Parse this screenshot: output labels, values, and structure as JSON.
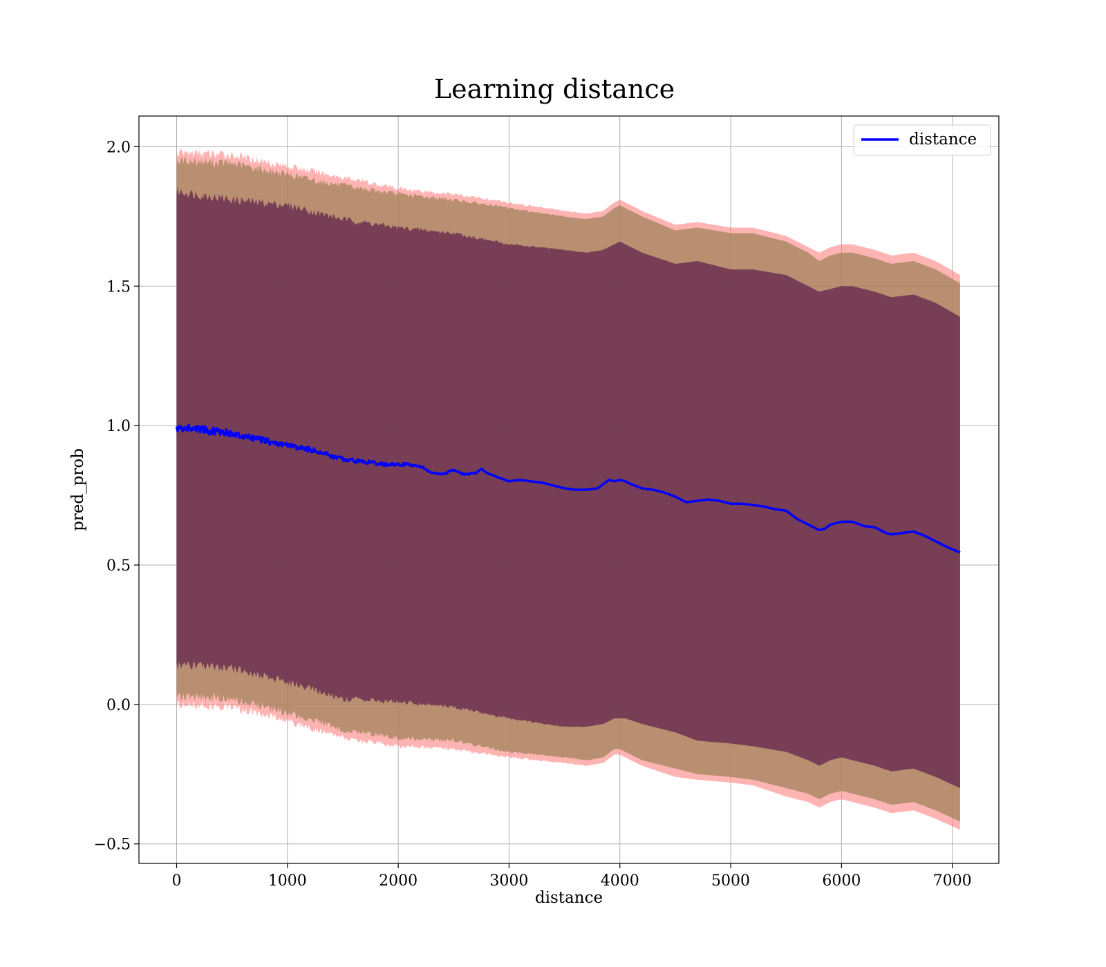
{
  "chart_data": {
    "type": "area",
    "title": "Learning distance",
    "xlabel": "distance",
    "ylabel": "pred_prob",
    "xlim": [
      -340,
      7420
    ],
    "ylim": [
      -0.57,
      2.11
    ],
    "xticks": [
      0,
      1000,
      2000,
      3000,
      4000,
      5000,
      6000,
      7000
    ],
    "yticks": [
      -0.5,
      0.0,
      0.5,
      1.0,
      1.5,
      2.0
    ],
    "xtick_labels": [
      "0",
      "1000",
      "2000",
      "3000",
      "4000",
      "5000",
      "6000",
      "7000"
    ],
    "ytick_labels": [
      "−0.5",
      "0.0",
      "0.5",
      "1.0",
      "1.5",
      "2.0"
    ],
    "grid": true,
    "legend_position": "top-right",
    "series": [
      {
        "name": "distance",
        "color": "#0000ff",
        "x": [
          0,
          100,
          200,
          300,
          400,
          500,
          600,
          700,
          800,
          900,
          1000,
          1100,
          1200,
          1300,
          1400,
          1500,
          1600,
          1700,
          1800,
          1900,
          2000,
          2100,
          2200,
          2300,
          2400,
          2500,
          2600,
          2700,
          2750,
          2800,
          2900,
          3000,
          3100,
          3200,
          3300,
          3400,
          3500,
          3600,
          3700,
          3800,
          3850,
          3900,
          3950,
          4000,
          4050,
          4100,
          4200,
          4300,
          4400,
          4500,
          4600,
          4700,
          4800,
          4900,
          5000,
          5100,
          5200,
          5300,
          5400,
          5500,
          5600,
          5700,
          5800,
          5850,
          5900,
          6000,
          6100,
          6200,
          6300,
          6400,
          6450,
          6550,
          6650,
          6750,
          6850,
          6950,
          7070
        ],
        "y": [
          0.99,
          0.99,
          0.99,
          0.98,
          0.98,
          0.97,
          0.96,
          0.955,
          0.945,
          0.935,
          0.93,
          0.92,
          0.915,
          0.905,
          0.89,
          0.88,
          0.875,
          0.87,
          0.865,
          0.86,
          0.86,
          0.86,
          0.855,
          0.83,
          0.825,
          0.84,
          0.825,
          0.83,
          0.845,
          0.83,
          0.815,
          0.8,
          0.805,
          0.8,
          0.795,
          0.785,
          0.775,
          0.77,
          0.77,
          0.775,
          0.79,
          0.805,
          0.8,
          0.805,
          0.8,
          0.79,
          0.775,
          0.77,
          0.76,
          0.745,
          0.725,
          0.73,
          0.735,
          0.73,
          0.72,
          0.72,
          0.715,
          0.71,
          0.7,
          0.695,
          0.665,
          0.645,
          0.625,
          0.63,
          0.645,
          0.655,
          0.655,
          0.64,
          0.635,
          0.615,
          0.61,
          0.615,
          0.62,
          0.605,
          0.585,
          0.565,
          0.545
        ]
      }
    ],
    "bands": [
      {
        "sigma": 1,
        "color": "#6b3050",
        "x": [
          0,
          500,
          1000,
          1500,
          2000,
          2500,
          3000,
          3500,
          3700,
          3850,
          3950,
          4000,
          4050,
          4200,
          4500,
          4700,
          5000,
          5200,
          5500,
          5700,
          5800,
          5900,
          6000,
          6100,
          6200,
          6300,
          6450,
          6650,
          6850,
          7070
        ],
        "upper": [
          1.84,
          1.81,
          1.79,
          1.74,
          1.71,
          1.69,
          1.65,
          1.63,
          1.62,
          1.63,
          1.65,
          1.66,
          1.65,
          1.62,
          1.58,
          1.59,
          1.56,
          1.56,
          1.54,
          1.5,
          1.48,
          1.49,
          1.5,
          1.5,
          1.49,
          1.48,
          1.46,
          1.47,
          1.44,
          1.39
        ],
        "lower": [
          0.14,
          0.13,
          0.08,
          0.02,
          0.01,
          -0.01,
          -0.05,
          -0.08,
          -0.08,
          -0.07,
          -0.05,
          -0.05,
          -0.05,
          -0.07,
          -0.1,
          -0.13,
          -0.14,
          -0.15,
          -0.17,
          -0.2,
          -0.22,
          -0.2,
          -0.19,
          -0.2,
          -0.21,
          -0.22,
          -0.24,
          -0.23,
          -0.26,
          -0.3
        ]
      },
      {
        "sigma": 2,
        "color": "#a0835a",
        "x": [
          0,
          500,
          1000,
          1500,
          2000,
          2500,
          3000,
          3500,
          3700,
          3850,
          3950,
          4000,
          4050,
          4200,
          4500,
          4700,
          5000,
          5200,
          5500,
          5700,
          5800,
          5900,
          6000,
          6100,
          6200,
          6300,
          6450,
          6650,
          6850,
          7070
        ],
        "upper": [
          1.95,
          1.94,
          1.9,
          1.86,
          1.83,
          1.81,
          1.78,
          1.75,
          1.74,
          1.75,
          1.78,
          1.79,
          1.78,
          1.75,
          1.7,
          1.71,
          1.69,
          1.69,
          1.66,
          1.62,
          1.59,
          1.61,
          1.62,
          1.62,
          1.61,
          1.6,
          1.58,
          1.59,
          1.56,
          1.51
        ],
        "lower": [
          0.03,
          0.02,
          -0.03,
          -0.09,
          -0.12,
          -0.13,
          -0.17,
          -0.19,
          -0.2,
          -0.19,
          -0.16,
          -0.16,
          -0.17,
          -0.2,
          -0.23,
          -0.25,
          -0.26,
          -0.27,
          -0.3,
          -0.32,
          -0.34,
          -0.32,
          -0.31,
          -0.32,
          -0.33,
          -0.34,
          -0.36,
          -0.35,
          -0.38,
          -0.42
        ]
      },
      {
        "sigma": 3,
        "color": "#ff7777",
        "x": [
          0,
          500,
          1000,
          1500,
          2000,
          2500,
          3000,
          3500,
          3700,
          3850,
          3950,
          4000,
          4050,
          4200,
          4500,
          4700,
          5000,
          5200,
          5500,
          5700,
          5800,
          5900,
          6000,
          6100,
          6200,
          6300,
          6450,
          6650,
          6850,
          7070
        ],
        "upper": [
          1.98,
          1.97,
          1.93,
          1.89,
          1.85,
          1.83,
          1.8,
          1.77,
          1.76,
          1.77,
          1.8,
          1.81,
          1.8,
          1.77,
          1.72,
          1.73,
          1.71,
          1.71,
          1.68,
          1.64,
          1.62,
          1.64,
          1.65,
          1.65,
          1.64,
          1.63,
          1.61,
          1.62,
          1.59,
          1.54
        ],
        "lower": [
          0.0,
          -0.01,
          -0.06,
          -0.12,
          -0.15,
          -0.16,
          -0.19,
          -0.21,
          -0.22,
          -0.21,
          -0.18,
          -0.18,
          -0.19,
          -0.22,
          -0.26,
          -0.27,
          -0.28,
          -0.29,
          -0.33,
          -0.35,
          -0.37,
          -0.35,
          -0.34,
          -0.35,
          -0.36,
          -0.37,
          -0.39,
          -0.38,
          -0.41,
          -0.45
        ]
      }
    ]
  }
}
